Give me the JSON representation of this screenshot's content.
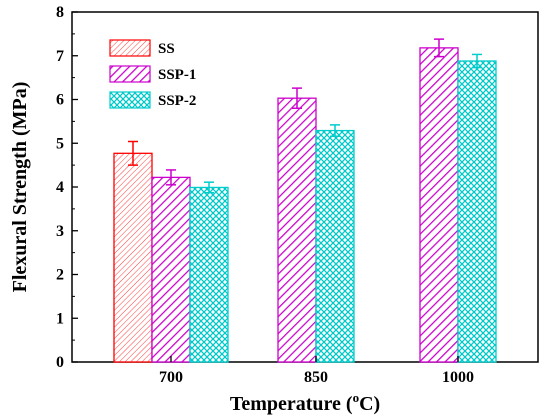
{
  "chart_data": {
    "type": "bar",
    "title": "",
    "xlabel": "Temperature (",
    "xlabel_unit_sup": "o",
    "xlabel_unit_tail": "C)",
    "ylabel": "Flexural Strength (MPa)",
    "ylim": [
      0,
      8
    ],
    "yticks": [
      "0",
      "1",
      "2",
      "3",
      "4",
      "5",
      "6",
      "7",
      "8"
    ],
    "categories": [
      "700",
      "850",
      "1000"
    ],
    "legend_position": "top-left",
    "grid": false,
    "series": [
      {
        "name": "SS",
        "color": "#ff0000",
        "pattern": "diagonal-fine",
        "values": [
          4.77,
          null,
          null
        ],
        "errors": [
          0.27,
          null,
          null
        ]
      },
      {
        "name": "SSP-1",
        "color": "#cc00cc",
        "pattern": "diagonal",
        "values": [
          4.22,
          6.03,
          7.18
        ],
        "errors": [
          0.17,
          0.23,
          0.2
        ]
      },
      {
        "name": "SSP-2",
        "color": "#00cccc",
        "pattern": "crosshatch",
        "values": [
          3.99,
          5.29,
          6.88
        ],
        "errors": [
          0.12,
          0.13,
          0.15
        ]
      }
    ]
  }
}
